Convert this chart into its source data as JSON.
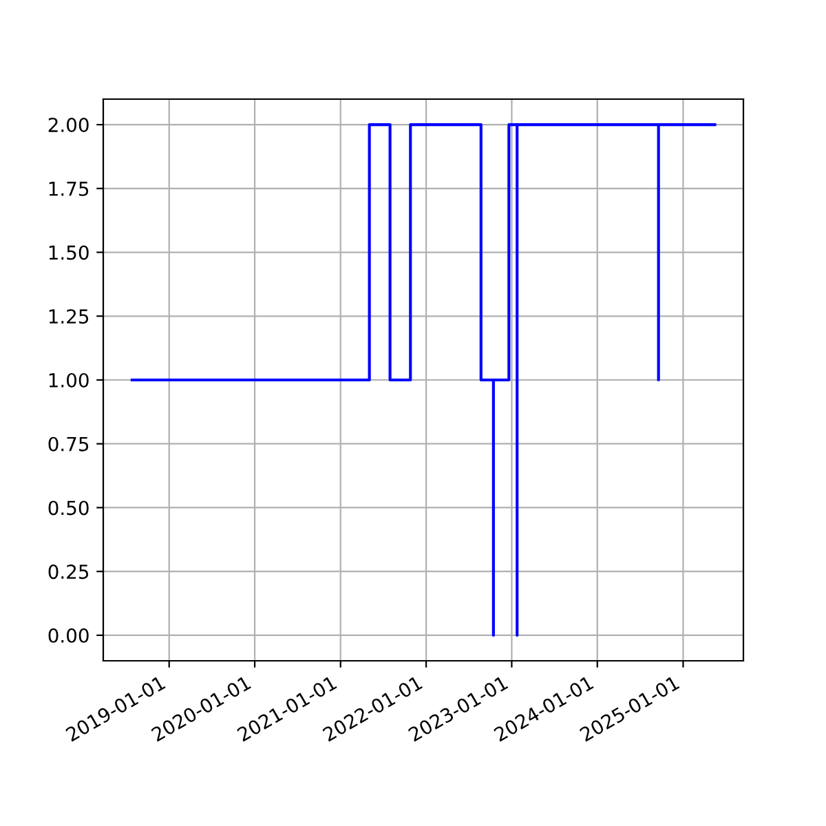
{
  "chart_data": {
    "type": "step",
    "series": [
      {
        "color": "#0000ff",
        "x": [
          "2018-07-27",
          "2021-05-04",
          "2021-07-31",
          "2021-10-26",
          "2022-08-23",
          "2022-10-15",
          "2022-10-15",
          "2022-12-20",
          "2023-01-24",
          "2023-01-24",
          "2024-09-18",
          "2024-09-18",
          "2025-05-16"
        ],
        "values": [
          1,
          1,
          2,
          1,
          2,
          1,
          0,
          1,
          2,
          0,
          2,
          1,
          2
        ]
      }
    ],
    "xlim": [
      "2018-03-26",
      "2025-09-15"
    ],
    "xticks": [
      "2019-01-01",
      "2020-01-01",
      "2021-01-01",
      "2022-01-01",
      "2023-01-01",
      "2024-01-01",
      "2025-01-01"
    ],
    "ylim": [
      -0.1,
      2.1
    ],
    "yticks": [
      {
        "value": 0,
        "label": "0.00"
      },
      {
        "value": 0.25,
        "label": "0.25"
      },
      {
        "value": 0.5,
        "label": "0.50"
      },
      {
        "value": 0.75,
        "label": "0.75"
      },
      {
        "value": 1,
        "label": "1.00"
      },
      {
        "value": 1.25,
        "label": "1.25"
      },
      {
        "value": 1.5,
        "label": "1.50"
      },
      {
        "value": 1.75,
        "label": "1.75"
      },
      {
        "value": 2,
        "label": "2.00"
      }
    ],
    "grid": true
  }
}
